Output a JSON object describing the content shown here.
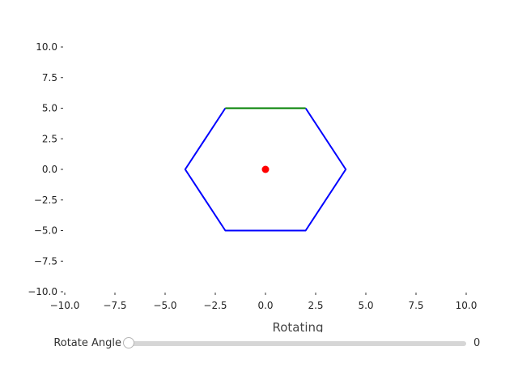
{
  "chart_data": {
    "type": "line",
    "xlabel": "Rotating",
    "ylabel": "",
    "xlim": [
      -10,
      10
    ],
    "ylim": [
      -10,
      10
    ],
    "xticks": [
      "−10.0",
      "−7.5",
      "−5.0",
      "−2.5",
      "0.0",
      "2.5",
      "5.0",
      "7.5",
      "10.0"
    ],
    "yticks": [
      "10.0",
      "7.5",
      "5.0",
      "2.5",
      "0.0",
      "−2.5",
      "−5.0",
      "−7.5",
      "−10.0"
    ],
    "grid": false,
    "series": [
      {
        "kind": "line",
        "color": "#0000ff",
        "points": [
          [
            2,
            5
          ],
          [
            4,
            0
          ],
          [
            2,
            -5
          ],
          [
            -2,
            -5
          ],
          [
            -4,
            0
          ],
          [
            -2,
            5
          ]
        ]
      },
      {
        "kind": "line",
        "color": "#008000",
        "points": [
          [
            -2,
            5
          ],
          [
            2,
            5
          ]
        ]
      },
      {
        "kind": "point",
        "color": "#ff0000",
        "points": [
          [
            0,
            0
          ]
        ]
      }
    ]
  },
  "slider": {
    "label": "Rotate Angle",
    "value": "0",
    "min": 0,
    "max": 360,
    "current": 0
  }
}
